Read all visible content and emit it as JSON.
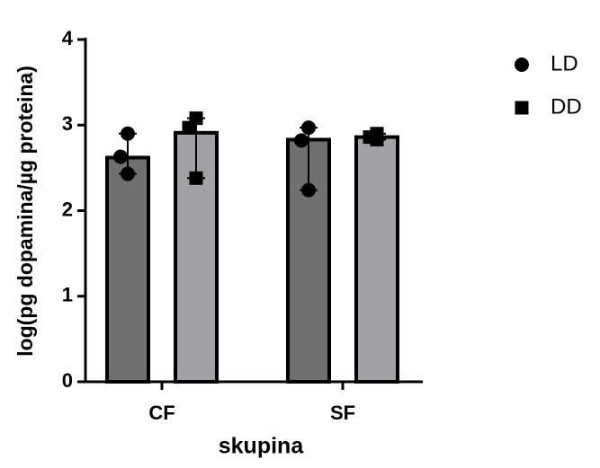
{
  "chart_data": {
    "type": "bar",
    "x_label": "skupina",
    "y_label": "log(pg dopamina/µg proteina)",
    "categories": [
      "CF",
      "SF"
    ],
    "series": [
      {
        "name": "LD",
        "color": "#707070",
        "marker": "circle",
        "values": [
          2.62,
          2.83
        ],
        "range_low": [
          2.43,
          2.24
        ],
        "range_high": [
          2.9,
          2.97
        ],
        "points": [
          [
            2.9,
            2.63,
            2.43
          ],
          [
            2.97,
            2.82,
            2.24
          ]
        ]
      },
      {
        "name": "DD",
        "color": "#a2a2a5",
        "marker": "square",
        "values": [
          2.91,
          2.86
        ],
        "range_low": [
          2.38,
          2.83
        ],
        "range_high": [
          3.08,
          2.9
        ],
        "points": [
          [
            3.08,
            2.97,
            2.38
          ],
          [
            2.83,
            2.86,
            2.9
          ]
        ]
      }
    ],
    "ylim": [
      0,
      4
    ],
    "yticks": [
      0,
      1,
      2,
      3,
      4
    ],
    "legend": "right"
  }
}
